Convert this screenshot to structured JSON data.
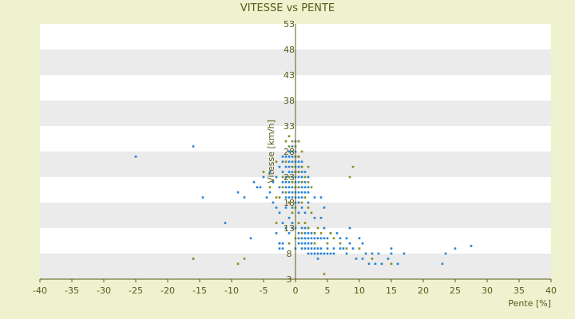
{
  "chart_data": {
    "type": "scatter",
    "title": "VITESSE vs PENTE",
    "xlabel": "Pente [%]",
    "ylabel": "Vitesse [km/h]",
    "xlim": [
      -40,
      40
    ],
    "ylim": [
      3,
      53
    ],
    "x_ticks": [
      -40,
      -35,
      -30,
      -25,
      -20,
      -15,
      -10,
      -5,
      0,
      5,
      10,
      15,
      20,
      25,
      30,
      35,
      40
    ],
    "y_ticks": [
      3,
      8,
      13,
      18,
      23,
      28,
      33,
      38,
      43,
      48,
      53
    ],
    "grid": "horizontal bands",
    "legend": "none",
    "colors": {
      "background": "#EEF2CF",
      "band_light": "#FFFFFF",
      "band_dark": "#EBEBEB",
      "axis": "#5A5A1A",
      "text": "#5A5A1A",
      "series": [
        "#1E7FD8",
        "#8A8A1E"
      ]
    },
    "series": [
      {
        "values": [
          [
            -25,
            27
          ],
          [
            -16,
            29
          ],
          [
            -16,
            7
          ],
          [
            -14.5,
            19
          ],
          [
            -11,
            14
          ],
          [
            -9,
            20
          ],
          [
            -8,
            19
          ],
          [
            -7,
            11
          ],
          [
            -6.5,
            22
          ],
          [
            -6,
            21
          ],
          [
            -5.5,
            21
          ],
          [
            -5,
            23
          ],
          [
            -4.5,
            19
          ],
          [
            -4,
            20
          ],
          [
            -4,
            24
          ],
          [
            -3.5,
            22
          ],
          [
            -3.5,
            18
          ],
          [
            -3,
            17
          ],
          [
            -3,
            23
          ],
          [
            -3,
            12
          ],
          [
            -2.5,
            21
          ],
          [
            -2.5,
            25
          ],
          [
            -2.5,
            16
          ],
          [
            -2.5,
            9
          ],
          [
            -2.5,
            10
          ],
          [
            -2,
            22
          ],
          [
            -2,
            26
          ],
          [
            -2,
            27
          ],
          [
            -2,
            24
          ],
          [
            -2,
            20
          ],
          [
            -2,
            14
          ],
          [
            -2,
            9
          ],
          [
            -2.5,
            10
          ],
          [
            -2,
            10
          ],
          [
            -1.5,
            27
          ],
          [
            -1.5,
            25
          ],
          [
            -1.5,
            23
          ],
          [
            -1.5,
            22
          ],
          [
            -1.5,
            21
          ],
          [
            -1.5,
            19
          ],
          [
            -1.5,
            17
          ],
          [
            -1.5,
            13
          ],
          [
            -1,
            28
          ],
          [
            -1,
            27
          ],
          [
            -1,
            26
          ],
          [
            -1,
            25
          ],
          [
            -1,
            24
          ],
          [
            -1,
            23
          ],
          [
            -1,
            22
          ],
          [
            -1,
            21
          ],
          [
            -1,
            20
          ],
          [
            -1,
            19
          ],
          [
            -1,
            18
          ],
          [
            -1,
            15
          ],
          [
            -1,
            12
          ],
          [
            -0.5,
            29
          ],
          [
            -0.5,
            28
          ],
          [
            -0.5,
            27
          ],
          [
            -0.5,
            26
          ],
          [
            -0.5,
            25
          ],
          [
            -0.5,
            24
          ],
          [
            -0.5,
            23
          ],
          [
            -0.5,
            22
          ],
          [
            -0.5,
            21
          ],
          [
            -0.5,
            20
          ],
          [
            -0.5,
            19
          ],
          [
            -0.5,
            17
          ],
          [
            -0.5,
            14
          ],
          [
            -0.5,
            13
          ],
          [
            0,
            30
          ],
          [
            0,
            28
          ],
          [
            0,
            27
          ],
          [
            0,
            26
          ],
          [
            0,
            25
          ],
          [
            0,
            24
          ],
          [
            0,
            23
          ],
          [
            0,
            22
          ],
          [
            0,
            21
          ],
          [
            0,
            20
          ],
          [
            0,
            19
          ],
          [
            0,
            18
          ],
          [
            0,
            13
          ],
          [
            0,
            9
          ],
          [
            0.5,
            27
          ],
          [
            0.5,
            26
          ],
          [
            0.5,
            25
          ],
          [
            0.5,
            24
          ],
          [
            0.5,
            23
          ],
          [
            0.5,
            22
          ],
          [
            0.5,
            21
          ],
          [
            0.5,
            20
          ],
          [
            0.5,
            19
          ],
          [
            0.5,
            18
          ],
          [
            0.5,
            16
          ],
          [
            0.5,
            12
          ],
          [
            0.5,
            11
          ],
          [
            0.5,
            10
          ],
          [
            1,
            26
          ],
          [
            1,
            25
          ],
          [
            1,
            24
          ],
          [
            1,
            23
          ],
          [
            1,
            22
          ],
          [
            1,
            21
          ],
          [
            1,
            20
          ],
          [
            1,
            19
          ],
          [
            1,
            17
          ],
          [
            1,
            13
          ],
          [
            1,
            11
          ],
          [
            1,
            10
          ],
          [
            1,
            9
          ],
          [
            1.5,
            24
          ],
          [
            1.5,
            22
          ],
          [
            1.5,
            21
          ],
          [
            1.5,
            20
          ],
          [
            1.5,
            16
          ],
          [
            1.5,
            13
          ],
          [
            1.5,
            12
          ],
          [
            1.5,
            11
          ],
          [
            1.5,
            10
          ],
          [
            1.5,
            9
          ],
          [
            2,
            23
          ],
          [
            2,
            21
          ],
          [
            2,
            20
          ],
          [
            2,
            18
          ],
          [
            2,
            13
          ],
          [
            2,
            12
          ],
          [
            2,
            11
          ],
          [
            2,
            10
          ],
          [
            2,
            9
          ],
          [
            2,
            8
          ],
          [
            2.5,
            12
          ],
          [
            2.5,
            11
          ],
          [
            2.5,
            10
          ],
          [
            2.5,
            9
          ],
          [
            2.5,
            8
          ],
          [
            3,
            19
          ],
          [
            3,
            15
          ],
          [
            3,
            12
          ],
          [
            3,
            11
          ],
          [
            3,
            9
          ],
          [
            3,
            8
          ],
          [
            3.5,
            11
          ],
          [
            3.5,
            9
          ],
          [
            3.5,
            8
          ],
          [
            3.5,
            7
          ],
          [
            4,
            19
          ],
          [
            4,
            15
          ],
          [
            4,
            11
          ],
          [
            4,
            9
          ],
          [
            4,
            8
          ],
          [
            4.5,
            17
          ],
          [
            4.5,
            13
          ],
          [
            4.5,
            11
          ],
          [
            4.5,
            8
          ],
          [
            5,
            11
          ],
          [
            5,
            9
          ],
          [
            5,
            8
          ],
          [
            5.5,
            12
          ],
          [
            5.5,
            8
          ],
          [
            6,
            9
          ],
          [
            6,
            8
          ],
          [
            6.5,
            12
          ],
          [
            7,
            11
          ],
          [
            7,
            9
          ],
          [
            7.5,
            9
          ],
          [
            8,
            8
          ],
          [
            8,
            11
          ],
          [
            8.5,
            13
          ],
          [
            8.5,
            10
          ],
          [
            9,
            9
          ],
          [
            9.5,
            7
          ],
          [
            10,
            11
          ],
          [
            10.5,
            10
          ],
          [
            10.5,
            7
          ],
          [
            11,
            8
          ],
          [
            11.5,
            6
          ],
          [
            12,
            8
          ],
          [
            12.5,
            6
          ],
          [
            13,
            8
          ],
          [
            13.5,
            6
          ],
          [
            14.5,
            7
          ],
          [
            15,
            9
          ],
          [
            15,
            8
          ],
          [
            16,
            6
          ],
          [
            17,
            8
          ],
          [
            23,
            6
          ],
          [
            23.5,
            8
          ],
          [
            25,
            9
          ],
          [
            27.5,
            9.5
          ]
        ]
      },
      {
        "values": [
          [
            -16,
            7
          ],
          [
            -9,
            6
          ],
          [
            -8,
            7
          ],
          [
            -5,
            24
          ],
          [
            -4,
            21
          ],
          [
            -3,
            19
          ],
          [
            -3,
            26
          ],
          [
            -3,
            14
          ],
          [
            -2.5,
            19
          ],
          [
            -2,
            23
          ],
          [
            -2,
            21
          ],
          [
            -1.5,
            30
          ],
          [
            -1.5,
            26
          ],
          [
            -1.5,
            20
          ],
          [
            -1,
            31
          ],
          [
            -1,
            29
          ],
          [
            -1,
            23
          ],
          [
            -1,
            18
          ],
          [
            -1,
            10
          ],
          [
            -0.5,
            30
          ],
          [
            -0.5,
            25
          ],
          [
            -0.5,
            22
          ],
          [
            -0.5,
            16
          ],
          [
            0,
            29
          ],
          [
            0,
            27
          ],
          [
            0,
            24
          ],
          [
            0,
            21
          ],
          [
            0,
            17
          ],
          [
            0,
            11
          ],
          [
            0.5,
            30
          ],
          [
            0.5,
            27
          ],
          [
            0.5,
            24
          ],
          [
            0.5,
            21
          ],
          [
            0.5,
            14
          ],
          [
            1,
            28
          ],
          [
            1,
            25
          ],
          [
            1,
            22
          ],
          [
            1,
            18
          ],
          [
            1,
            12
          ],
          [
            1.5,
            23
          ],
          [
            1.5,
            19
          ],
          [
            1.5,
            14
          ],
          [
            2,
            25
          ],
          [
            2,
            22
          ],
          [
            2,
            17
          ],
          [
            2,
            13
          ],
          [
            2.5,
            21
          ],
          [
            2.5,
            16
          ],
          [
            3,
            12
          ],
          [
            3,
            10
          ],
          [
            3.5,
            13
          ],
          [
            4,
            12
          ],
          [
            4.5,
            4
          ],
          [
            5,
            10
          ],
          [
            5.5,
            12
          ],
          [
            6,
            11
          ],
          [
            7,
            10
          ],
          [
            8,
            9
          ],
          [
            8.5,
            23
          ],
          [
            9,
            25
          ],
          [
            10,
            9
          ],
          [
            12,
            7
          ],
          [
            15,
            6
          ]
        ]
      }
    ]
  }
}
